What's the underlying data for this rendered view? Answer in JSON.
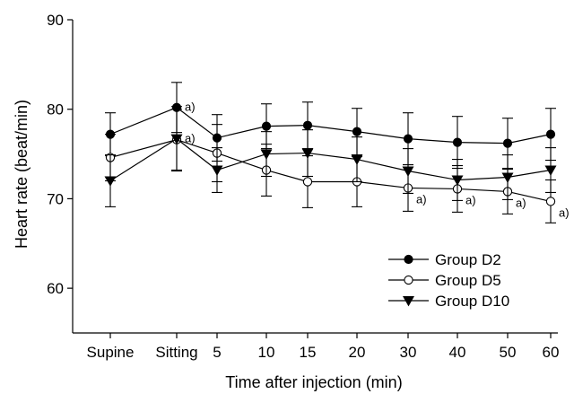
{
  "chart_data": {
    "type": "line",
    "xlabel": "Time after injection (min)",
    "ylabel": "Heart rate (beat/min)",
    "ylim": [
      55,
      90
    ],
    "yticks": [
      60,
      70,
      80,
      90
    ],
    "categories": [
      "Supine",
      "Sitting",
      "5",
      "10",
      "15",
      "20",
      "30",
      "40",
      "50",
      "60"
    ],
    "legend": {
      "placement": "bottom-right"
    },
    "grid": false,
    "series": [
      {
        "name": "Group D2",
        "marker": "filled-circle",
        "values": [
          77.2,
          80.2,
          76.8,
          78.1,
          78.2,
          77.5,
          76.7,
          76.3,
          76.2,
          77.2
        ],
        "err": [
          2.4,
          2.8,
          2.6,
          2.5,
          2.6,
          2.6,
          2.9,
          2.9,
          2.8,
          2.9
        ],
        "annotations": [
          1
        ]
      },
      {
        "name": "Group D5",
        "marker": "open-circle",
        "values": [
          74.6,
          76.6,
          75.1,
          73.2,
          71.9,
          71.9,
          71.2,
          71.1,
          70.8,
          69.7
        ],
        "err": [
          2.6,
          3.4,
          3.2,
          2.9,
          2.9,
          2.8,
          2.6,
          2.6,
          2.5,
          2.4
        ],
        "annotations": [
          6,
          7,
          8,
          9
        ]
      },
      {
        "name": "Group D10",
        "marker": "filled-triangle-down",
        "values": [
          72.0,
          76.7,
          73.2,
          75.0,
          75.1,
          74.4,
          73.1,
          72.1,
          72.4,
          73.2
        ],
        "err": [
          2.9,
          3.6,
          2.5,
          2.5,
          2.6,
          2.5,
          2.5,
          2.3,
          2.5,
          2.5
        ],
        "annotations": [
          1
        ]
      }
    ],
    "annotation_text": "a)"
  }
}
